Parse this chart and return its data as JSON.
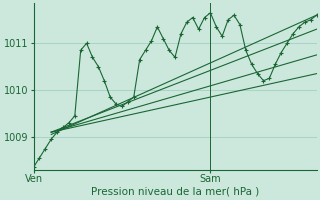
{
  "title": "Pression niveau de la mer( hPa )",
  "bg_color": "#cce8dd",
  "grid_color": "#99ccbb",
  "line_color": "#1a6633",
  "yticks": [
    1009,
    1010,
    1011
  ],
  "ylim": [
    1008.3,
    1011.85
  ],
  "xlim": [
    0,
    48
  ],
  "ven_x": 0,
  "sam_x": 30,
  "x_jagged": [
    0,
    1,
    2,
    3,
    4,
    5,
    6,
    7,
    8,
    9,
    10,
    11,
    12,
    13,
    14,
    15,
    16,
    17,
    18,
    19,
    20,
    21,
    22,
    23,
    24,
    25,
    26,
    27,
    28,
    29,
    30,
    31,
    32,
    33,
    34,
    35,
    36,
    37,
    38,
    39,
    40,
    41,
    42,
    43,
    44,
    45,
    46,
    47,
    48
  ],
  "y_jagged": [
    1008.35,
    1008.55,
    1008.75,
    1008.95,
    1009.1,
    1009.2,
    1009.3,
    1009.45,
    1010.85,
    1011.0,
    1010.7,
    1010.5,
    1010.2,
    1009.85,
    1009.7,
    1009.65,
    1009.75,
    1009.85,
    1010.65,
    1010.85,
    1011.05,
    1011.35,
    1011.1,
    1010.85,
    1010.7,
    1011.2,
    1011.45,
    1011.55,
    1011.3,
    1011.55,
    1011.65,
    1011.35,
    1011.15,
    1011.5,
    1011.6,
    1011.4,
    1010.85,
    1010.55,
    1010.35,
    1010.2,
    1010.25,
    1010.55,
    1010.8,
    1011.0,
    1011.2,
    1011.35,
    1011.45,
    1011.5,
    1011.6
  ],
  "fan_lines": [
    {
      "x": [
        3,
        48
      ],
      "y": [
        1009.05,
        1011.6
      ]
    },
    {
      "x": [
        3,
        48
      ],
      "y": [
        1009.1,
        1011.3
      ]
    },
    {
      "x": [
        3,
        48
      ],
      "y": [
        1009.1,
        1010.75
      ]
    },
    {
      "x": [
        3,
        48
      ],
      "y": [
        1009.1,
        1010.35
      ]
    }
  ]
}
